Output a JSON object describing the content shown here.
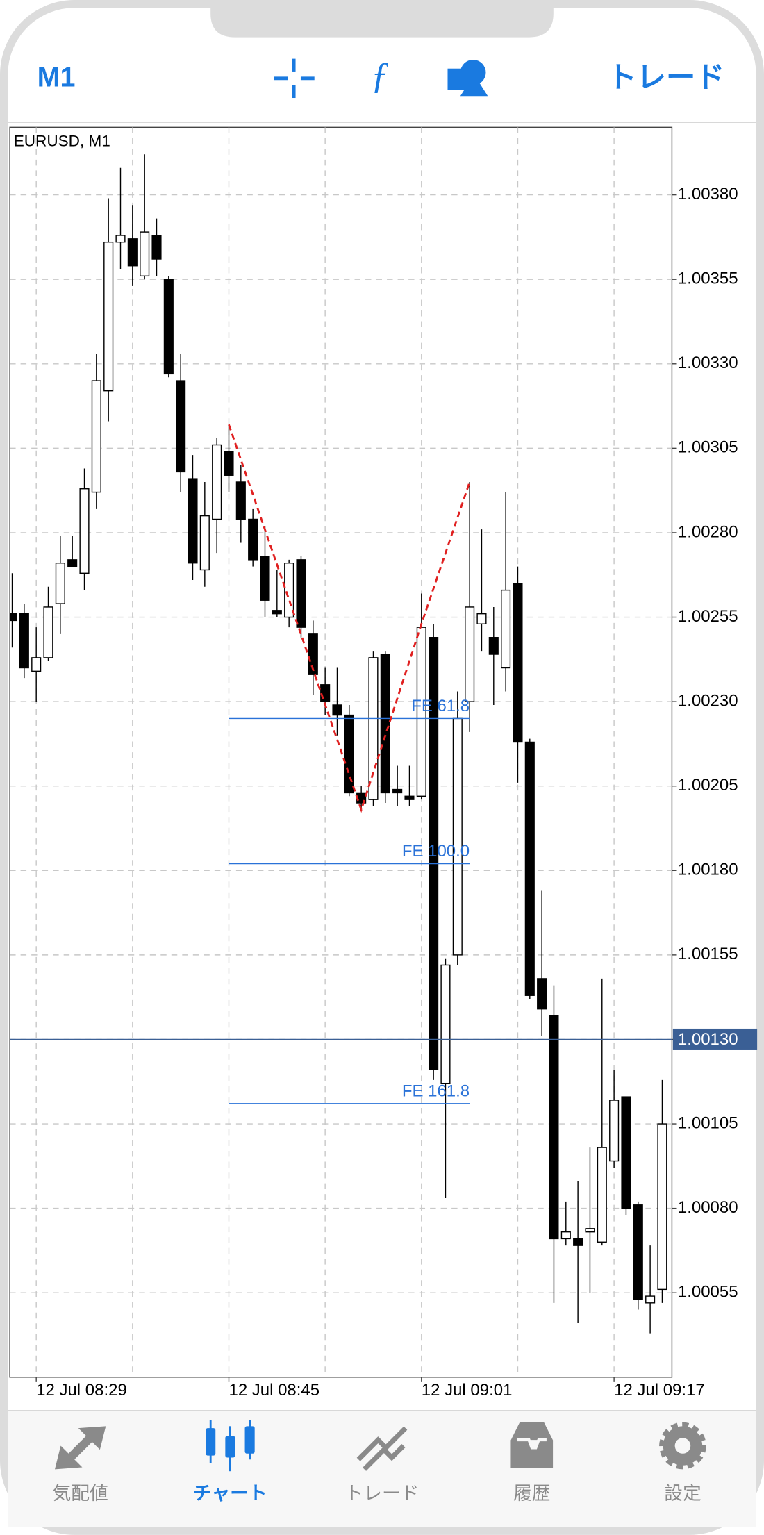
{
  "toolbar": {
    "timeframe": "M1",
    "trade": "トレード"
  },
  "chart_data": {
    "type": "candlestick",
    "title": "EURUSD, M1",
    "x": [
      "12 Jul 08:27",
      "12 Jul 08:28",
      "12 Jul 08:29",
      "12 Jul 08:30",
      "12 Jul 08:31",
      "12 Jul 08:32",
      "12 Jul 08:33",
      "12 Jul 08:34",
      "12 Jul 08:35",
      "12 Jul 08:36",
      "12 Jul 08:37",
      "12 Jul 08:38",
      "12 Jul 08:39",
      "12 Jul 08:40",
      "12 Jul 08:41",
      "12 Jul 08:42",
      "12 Jul 08:43",
      "12 Jul 08:44",
      "12 Jul 08:45",
      "12 Jul 08:46",
      "12 Jul 08:47",
      "12 Jul 08:48",
      "12 Jul 08:49",
      "12 Jul 08:50",
      "12 Jul 08:51",
      "12 Jul 08:52",
      "12 Jul 08:53",
      "12 Jul 08:54",
      "12 Jul 08:55",
      "12 Jul 08:56",
      "12 Jul 08:57",
      "12 Jul 08:58",
      "12 Jul 08:59",
      "12 Jul 09:00",
      "12 Jul 09:01",
      "12 Jul 09:02",
      "12 Jul 09:03",
      "12 Jul 09:04",
      "12 Jul 09:05",
      "12 Jul 09:06",
      "12 Jul 09:07",
      "12 Jul 09:08",
      "12 Jul 09:09",
      "12 Jul 09:10",
      "12 Jul 09:11",
      "12 Jul 09:12",
      "12 Jul 09:13",
      "12 Jul 09:14",
      "12 Jul 09:15",
      "12 Jul 09:16",
      "12 Jul 09:17",
      "12 Jul 09:18",
      "12 Jul 09:19",
      "12 Jul 09:20",
      "12 Jul 09:21"
    ],
    "open": [
      1.00256,
      1.00256,
      1.00239,
      1.00243,
      1.00259,
      1.00272,
      1.00268,
      1.00292,
      1.00322,
      1.00366,
      1.00367,
      1.00356,
      1.00368,
      1.00355,
      1.00325,
      1.00296,
      1.00269,
      1.00284,
      1.00304,
      1.00295,
      1.00284,
      1.00273,
      1.00257,
      1.00255,
      1.00272,
      1.0025,
      1.00235,
      1.00229,
      1.00226,
      1.00203,
      1.00201,
      1.00244,
      1.00204,
      1.00202,
      1.00202,
      1.00249,
      1.00117,
      1.00155,
      1.0023,
      1.00253,
      1.00249,
      1.0024,
      1.00265,
      1.00218,
      1.00148,
      1.00137,
      1.00071,
      1.00071,
      1.00073,
      1.0007,
      1.00094,
      1.00113,
      1.00081,
      1.00052,
      1.00056
    ],
    "high": [
      1.00268,
      1.00259,
      1.00252,
      1.00264,
      1.00279,
      1.00279,
      1.00299,
      1.00333,
      1.00379,
      1.00388,
      1.00377,
      1.00392,
      1.00373,
      1.00356,
      1.00333,
      1.00303,
      1.00295,
      1.00308,
      1.00312,
      1.003,
      1.00287,
      1.00282,
      1.00269,
      1.00272,
      1.00273,
      1.00254,
      1.0024,
      1.0024,
      1.00229,
      1.00205,
      1.00245,
      1.00245,
      1.00211,
      1.00211,
      1.00262,
      1.00253,
      1.00154,
      1.00233,
      1.00295,
      1.00281,
      1.00258,
      1.00292,
      1.0027,
      1.00219,
      1.00174,
      1.00146,
      1.00082,
      1.00088,
      1.00098,
      1.00148,
      1.00121,
      1.00113,
      1.00082,
      1.00069,
      1.00118
    ],
    "low": [
      1.00246,
      1.00237,
      1.0023,
      1.00242,
      1.0025,
      1.0027,
      1.00263,
      1.00287,
      1.00313,
      1.00358,
      1.00353,
      1.00355,
      1.00356,
      1.00326,
      1.00292,
      1.00266,
      1.00264,
      1.00274,
      1.00292,
      1.00277,
      1.0027,
      1.00255,
      1.00255,
      1.00252,
      1.00249,
      1.00232,
      1.00226,
      1.0022,
      1.00202,
      1.00198,
      1.00199,
      1.002,
      1.00199,
      1.00199,
      1.00201,
      1.00118,
      1.00083,
      1.00152,
      1.00221,
      1.00245,
      1.00229,
      1.00233,
      1.00206,
      1.00142,
      1.00131,
      1.00052,
      1.00069,
      1.00046,
      1.00055,
      1.00069,
      1.00092,
      1.00078,
      1.0005,
      1.00043,
      1.00052
    ],
    "close": [
      1.00254,
      1.0024,
      1.00243,
      1.00258,
      1.00271,
      1.0027,
      1.00293,
      1.00325,
      1.00366,
      1.00368,
      1.00359,
      1.00369,
      1.00361,
      1.00327,
      1.00298,
      1.00271,
      1.00285,
      1.00306,
      1.00297,
      1.00284,
      1.00272,
      1.0026,
      1.00256,
      1.00271,
      1.00252,
      1.00238,
      1.0023,
      1.00226,
      1.00203,
      1.002,
      1.00243,
      1.00203,
      1.00203,
      1.00201,
      1.00252,
      1.00121,
      1.00152,
      1.00225,
      1.00258,
      1.00256,
      1.00244,
      1.00263,
      1.00218,
      1.00143,
      1.00139,
      1.00071,
      1.00073,
      1.00069,
      1.00074,
      1.00098,
      1.00112,
      1.0008,
      1.00053,
      1.00054,
      1.00105
    ],
    "up_color": "#ffffff",
    "down_color": "#000000",
    "ylim": [
      1.0003,
      1.004
    ],
    "yticks": [
      {
        "value": 1.00055,
        "label": "1.00055"
      },
      {
        "value": 1.0008,
        "label": "1.00080"
      },
      {
        "value": 1.00105,
        "label": "1.00105"
      },
      {
        "value": 1.0013,
        "label": "1.00130"
      },
      {
        "value": 1.00155,
        "label": "1.00155"
      },
      {
        "value": 1.0018,
        "label": "1.00180"
      },
      {
        "value": 1.00205,
        "label": "1.00205"
      },
      {
        "value": 1.0023,
        "label": "1.00230"
      },
      {
        "value": 1.00255,
        "label": "1.00255"
      },
      {
        "value": 1.0028,
        "label": "1.00280"
      },
      {
        "value": 1.00305,
        "label": "1.00305"
      },
      {
        "value": 1.0033,
        "label": "1.00330"
      },
      {
        "value": 1.00355,
        "label": "1.00355"
      },
      {
        "value": 1.0038,
        "label": "1.00380"
      }
    ],
    "xticks": [
      "12 Jul 08:29",
      "12 Jul 08:45",
      "12 Jul 09:01",
      "12 Jul 09:17"
    ],
    "grid": true,
    "current_price": {
      "value": 1.0013,
      "label": "1.00130",
      "color": "#3a5f95"
    },
    "fibonacci_expansion": {
      "color": "#2a72d8",
      "x": [
        "12 Jul 08:45",
        "12 Jul 09:05"
      ],
      "levels": [
        {
          "label": "FE 61.8",
          "value": 1.00225
        },
        {
          "label": "FE 100.0",
          "value": 1.00182
        },
        {
          "label": "FE 161.8",
          "value": 1.00111
        }
      ]
    },
    "trend_line": {
      "color": "#e02020",
      "x": [
        "12 Jul 08:45",
        "12 Jul 08:56",
        "12 Jul 09:01",
        "12 Jul 09:05"
      ],
      "values": [
        1.00312,
        1.00198,
        1.00253,
        1.00295
      ]
    }
  },
  "tabs": {
    "active": 1,
    "items": [
      {
        "label": "気配値"
      },
      {
        "label": "チャート"
      },
      {
        "label": "トレード"
      },
      {
        "label": "履歴"
      },
      {
        "label": "設定"
      }
    ]
  }
}
